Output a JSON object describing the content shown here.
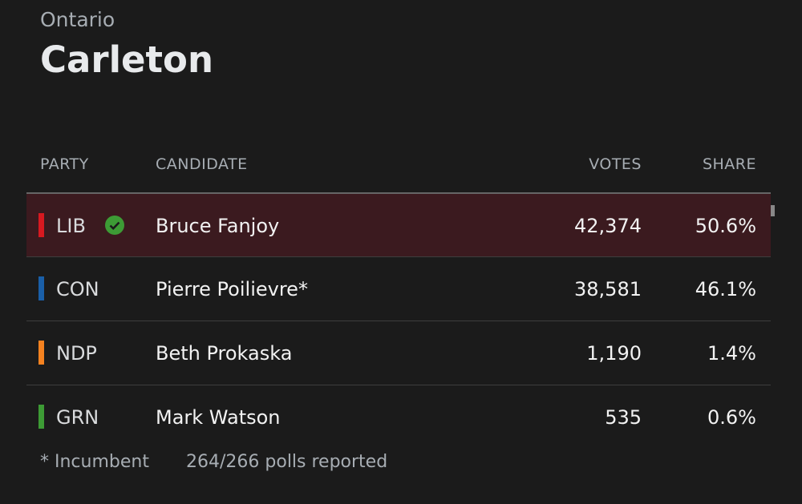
{
  "header": {
    "region": "Ontario",
    "title": "Carleton"
  },
  "table": {
    "headers": [
      "PARTY",
      "CANDIDATE",
      "VOTES",
      "SHARE"
    ],
    "rows": [
      {
        "party": "LIB",
        "color": "#d71920",
        "winner": true,
        "candidate": "Bruce Fanjoy",
        "votes": "42,374",
        "share": "50.6%"
      },
      {
        "party": "CON",
        "color": "#1a5fa8",
        "winner": false,
        "candidate": "Pierre Poilievre*",
        "votes": "38,581",
        "share": "46.1%"
      },
      {
        "party": "NDP",
        "color": "#f58220",
        "winner": false,
        "candidate": "Beth Prokaska",
        "votes": "1,190",
        "share": "1.4%"
      },
      {
        "party": "GRN",
        "color": "#3d9b35",
        "winner": false,
        "candidate": "Mark Watson",
        "votes": "535",
        "share": "0.6%"
      }
    ]
  },
  "footer": {
    "legend": "* Incumbent",
    "polls": "264/266 polls reported"
  }
}
